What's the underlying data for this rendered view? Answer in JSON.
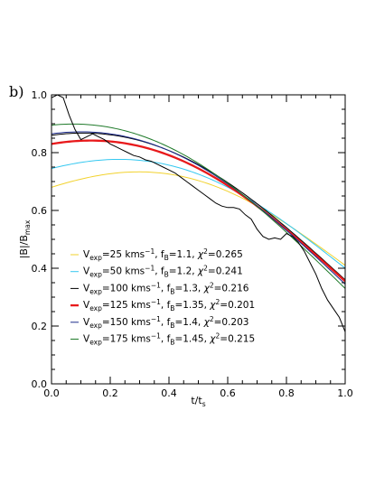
{
  "panel_label": "b)",
  "chart_data": {
    "type": "line",
    "title": "",
    "xlabel": {
      "main": "t/t",
      "sub": "s"
    },
    "ylabel": {
      "pre": "|B|/B",
      "sub": "max"
    },
    "xlim": [
      0.0,
      1.0
    ],
    "ylim": [
      0.0,
      1.0
    ],
    "xticks": [
      "0.0",
      "0.2",
      "0.4",
      "0.6",
      "0.8",
      "1.0"
    ],
    "yticks": [
      "0.0",
      "0.2",
      "0.4",
      "0.6",
      "0.8",
      "1.0"
    ],
    "grid": false,
    "legend_position": "bottom-left",
    "observed": {
      "color": "#000000",
      "x": [
        0.0,
        0.02,
        0.04,
        0.06,
        0.08,
        0.1,
        0.12,
        0.14,
        0.16,
        0.18,
        0.2,
        0.22,
        0.24,
        0.26,
        0.28,
        0.3,
        0.32,
        0.34,
        0.36,
        0.38,
        0.4,
        0.42,
        0.44,
        0.46,
        0.48,
        0.5,
        0.52,
        0.54,
        0.56,
        0.58,
        0.6,
        0.62,
        0.64,
        0.66,
        0.68,
        0.7,
        0.72,
        0.74,
        0.76,
        0.78,
        0.8,
        0.82,
        0.84,
        0.86,
        0.88,
        0.9,
        0.92,
        0.94,
        0.96,
        0.98,
        1.0
      ],
      "y": [
        0.99,
        1.0,
        0.99,
        0.93,
        0.88,
        0.845,
        0.855,
        0.865,
        0.855,
        0.845,
        0.83,
        0.82,
        0.81,
        0.8,
        0.79,
        0.785,
        0.775,
        0.77,
        0.76,
        0.75,
        0.74,
        0.73,
        0.715,
        0.7,
        0.685,
        0.67,
        0.655,
        0.64,
        0.625,
        0.615,
        0.61,
        0.61,
        0.605,
        0.585,
        0.57,
        0.535,
        0.51,
        0.5,
        0.505,
        0.5,
        0.52,
        0.51,
        0.49,
        0.46,
        0.42,
        0.38,
        0.33,
        0.29,
        0.26,
        0.23,
        0.18
      ]
    },
    "series": [
      {
        "name_parts": [
          "25",
          "1.1",
          "0.265"
        ],
        "color": "#f2d22e",
        "width": 1,
        "a": 0.68,
        "b": 0.41
      },
      {
        "name_parts": [
          "50",
          "1.2",
          "0.241"
        ],
        "color": "#35c8f0",
        "width": 1,
        "a": 0.745,
        "b": 0.4
      },
      {
        "name_parts": [
          "100",
          "1.3",
          "0.216"
        ],
        "color": "#000000",
        "width": 1,
        "a": 0.86,
        "b": 0.36
      },
      {
        "name_parts": [
          "125",
          "1.35",
          "0.201"
        ],
        "color": "#e8191b",
        "width": 2.3,
        "a": 0.83,
        "b": 0.355
      },
      {
        "name_parts": [
          "150",
          "1.4",
          "0.203"
        ],
        "color": "#1c2a8c",
        "width": 1,
        "a": 0.865,
        "b": 0.345
      },
      {
        "name_parts": [
          "175",
          "1.45",
          "0.215"
        ],
        "color": "#1f7a2a",
        "width": 1,
        "a": 0.895,
        "b": 0.33
      }
    ]
  }
}
